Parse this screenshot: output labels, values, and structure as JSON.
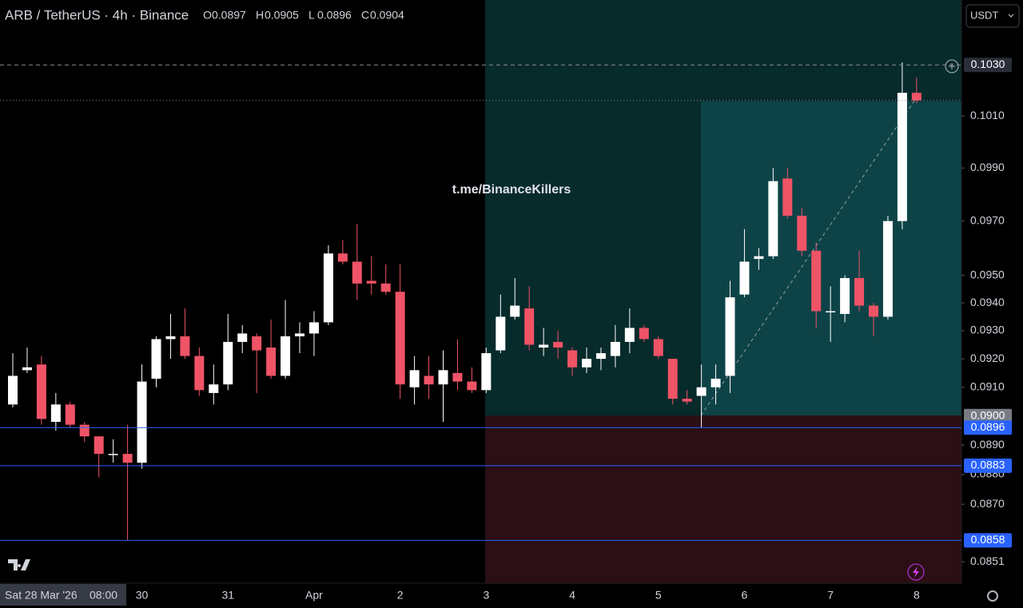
{
  "chart_data": {
    "type": "candlestick",
    "title": "ARB / TetherUS · 4h · Binance",
    "ohlc_header": [
      {
        "key": "O",
        "value": 0.0897
      },
      {
        "key": "H",
        "value": 0.0905
      },
      {
        "key": "L",
        "value": 0.0896
      },
      {
        "key": "C",
        "value": 0.0904
      }
    ],
    "watermark": "t.me/BinanceKillers",
    "currency": "USDT",
    "crosshair_date": "Sat 28 Mar '26",
    "crosshair_time": "08:00",
    "log_scale": true,
    "up_color": "#ffffff",
    "down_color": "#ef5366",
    "ylim": [
      0.0844,
      0.1056
    ],
    "yticks": [
      {
        "value": 0.101,
        "label": "0.1010"
      },
      {
        "value": 0.099,
        "label": "0.0990"
      },
      {
        "value": 0.097,
        "label": "0.0970"
      },
      {
        "value": 0.095,
        "label": "0.0950"
      },
      {
        "value": 0.094,
        "label": "0.0940"
      },
      {
        "value": 0.093,
        "label": "0.0930"
      },
      {
        "value": 0.092,
        "label": "0.0920"
      },
      {
        "value": 0.091,
        "label": "0.0910"
      },
      {
        "value": 0.089,
        "label": "0.0890"
      },
      {
        "value": 0.088,
        "label": "0.0880"
      },
      {
        "value": 0.087,
        "label": "0.0870"
      },
      {
        "value": 0.0851,
        "label": "0.0851"
      }
    ],
    "price_labels": [
      {
        "value": 0.103,
        "label": "0.1030",
        "color": "#2a2e39",
        "line": "dashed"
      },
      {
        "value": 0.09,
        "label": "0.0900",
        "color": "#787b86",
        "line": "none"
      },
      {
        "value": 0.0896,
        "label": "0.0896",
        "color": "#2962ff",
        "line": "solid"
      },
      {
        "value": 0.0883,
        "label": "0.0883",
        "color": "#2962ff",
        "line": "solid"
      },
      {
        "value": 0.0858,
        "label": "0.0858",
        "color": "#2962ff",
        "line": "solid"
      }
    ],
    "categories": [
      null,
      null,
      null,
      null,
      null,
      null,
      null,
      null,
      null,
      "30",
      null,
      null,
      null,
      null,
      null,
      "31",
      null,
      null,
      null,
      null,
      null,
      "Apr",
      null,
      null,
      null,
      null,
      null,
      "2",
      null,
      null,
      null,
      null,
      null,
      "3",
      null,
      null,
      null,
      null,
      null,
      "4",
      null,
      null,
      null,
      null,
      null,
      "5",
      null,
      null,
      null,
      null,
      null,
      "6",
      null,
      null,
      null,
      null,
      null,
      "7",
      null,
      null,
      null,
      null,
      null,
      "8"
    ],
    "open": [
      0.0904,
      0.0916,
      0.0918,
      0.0898,
      0.0904,
      0.0897,
      0.0893,
      0.0887,
      0.0887,
      0.0884,
      0.0913,
      0.0927,
      0.0928,
      0.0921,
      0.0908,
      0.0911,
      0.0926,
      0.0928,
      0.0924,
      0.0914,
      0.0928,
      0.0929,
      0.0933,
      0.0958,
      0.0955,
      0.0948,
      0.0947,
      0.0944,
      0.091,
      0.0914,
      0.0911,
      0.0915,
      0.0912,
      0.0909,
      0.0923,
      0.0935,
      0.0938,
      0.0924,
      0.0926,
      0.0923,
      0.0917,
      0.092,
      0.0921,
      0.0926,
      0.0931,
      0.0927,
      0.092,
      0.0906,
      0.0907,
      0.091,
      0.0914,
      0.0943,
      0.0956,
      0.0957,
      0.0986,
      0.0972,
      0.0959,
      0.0937,
      0.0936,
      0.0949,
      0.0939,
      0.0935,
      0.097,
      0.1019
    ],
    "high": [
      0.0922,
      0.0924,
      0.0921,
      0.0908,
      0.0905,
      0.0898,
      0.0893,
      0.0892,
      0.0897,
      0.0918,
      0.0928,
      0.0936,
      0.0938,
      0.0924,
      0.0918,
      0.0936,
      0.0932,
      0.0929,
      0.0934,
      0.0941,
      0.0933,
      0.0937,
      0.0961,
      0.0963,
      0.0969,
      0.0957,
      0.0954,
      0.0954,
      0.0921,
      0.0921,
      0.0923,
      0.0927,
      0.0917,
      0.0924,
      0.0943,
      0.0949,
      0.0946,
      0.0931,
      0.093,
      0.0924,
      0.0924,
      0.0924,
      0.0932,
      0.0938,
      0.0932,
      0.0928,
      0.092,
      0.0909,
      0.0918,
      0.0918,
      0.0948,
      0.0967,
      0.096,
      0.099,
      0.099,
      0.0975,
      0.0962,
      0.0946,
      0.095,
      0.0959,
      0.094,
      0.0972,
      0.1031,
      0.1025
    ],
    "low": [
      0.0903,
      0.0915,
      0.0897,
      0.0895,
      0.0896,
      0.0891,
      0.0879,
      0.0884,
      0.0858,
      0.0882,
      0.091,
      0.092,
      0.092,
      0.0907,
      0.0904,
      0.0909,
      0.0922,
      0.0908,
      0.0913,
      0.0913,
      0.0922,
      0.0921,
      0.0932,
      0.0954,
      0.0941,
      0.0943,
      0.0943,
      0.0906,
      0.0904,
      0.0906,
      0.0898,
      0.0909,
      0.0908,
      0.0908,
      0.0922,
      0.0934,
      0.0923,
      0.0921,
      0.092,
      0.0914,
      0.0915,
      0.0916,
      0.0917,
      0.0922,
      0.0926,
      0.092,
      0.0904,
      0.0904,
      0.0896,
      0.0904,
      0.0908,
      0.0942,
      0.0952,
      0.0956,
      0.0971,
      0.0957,
      0.0931,
      0.0926,
      0.0933,
      0.0937,
      0.0928,
      0.0934,
      0.0967,
      0.1015
    ],
    "close": [
      0.0914,
      0.0917,
      0.0899,
      0.0904,
      0.0897,
      0.0893,
      0.0887,
      0.0887,
      0.0884,
      0.0912,
      0.0927,
      0.0928,
      0.0921,
      0.0909,
      0.0911,
      0.0926,
      0.0929,
      0.0923,
      0.0914,
      0.0928,
      0.0929,
      0.0933,
      0.0958,
      0.0955,
      0.0947,
      0.0947,
      0.0944,
      0.0911,
      0.0916,
      0.0911,
      0.0916,
      0.0912,
      0.0909,
      0.0922,
      0.0935,
      0.0939,
      0.0925,
      0.0925,
      0.0924,
      0.0917,
      0.092,
      0.0922,
      0.0926,
      0.0931,
      0.0927,
      0.0921,
      0.0906,
      0.0905,
      0.091,
      0.0913,
      0.0942,
      0.0955,
      0.0957,
      0.0985,
      0.0972,
      0.0959,
      0.0937,
      0.0937,
      0.0949,
      0.0939,
      0.0935,
      0.097,
      0.1019,
      0.1016
    ]
  }
}
